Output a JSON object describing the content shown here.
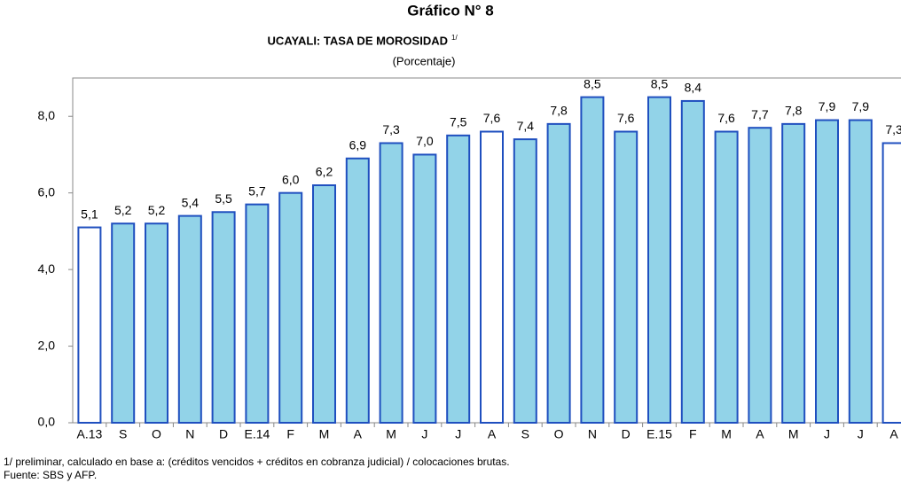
{
  "chart_data": {
    "type": "bar",
    "title": "Gráfico N° 8",
    "subtitle": "UCAYALI: TASA DE MOROSIDAD",
    "subtitle_note": "1/",
    "units": "(Porcentaje)",
    "categories": [
      "A.13",
      "S",
      "O",
      "N",
      "D",
      "E.14",
      "F",
      "M",
      "A",
      "M",
      "J",
      "J",
      "A",
      "S",
      "O",
      "N",
      "D",
      "E.15",
      "F",
      "M",
      "A",
      "M",
      "J",
      "J",
      "A"
    ],
    "values": [
      5.1,
      5.2,
      5.2,
      5.4,
      5.5,
      5.7,
      6.0,
      6.2,
      6.9,
      7.3,
      7.0,
      7.5,
      7.6,
      7.4,
      7.8,
      8.5,
      7.6,
      8.5,
      8.4,
      7.6,
      7.7,
      7.8,
      7.9,
      7.9,
      7.3
    ],
    "value_labels": [
      "5,1",
      "5,2",
      "5,2",
      "5,4",
      "5,5",
      "5,7",
      "6,0",
      "6,2",
      "6,9",
      "7,3",
      "7,0",
      "7,5",
      "7,6",
      "7,4",
      "7,8",
      "8,5",
      "7,6",
      "8,5",
      "8,4",
      "7,6",
      "7,7",
      "7,8",
      "7,9",
      "7,9",
      "7,3"
    ],
    "colors": [
      "#ffffff",
      "#92d3e8",
      "#92d3e8",
      "#92d3e8",
      "#92d3e8",
      "#92d3e8",
      "#92d3e8",
      "#92d3e8",
      "#92d3e8",
      "#92d3e8",
      "#92d3e8",
      "#92d3e8",
      "#ffffff",
      "#92d3e8",
      "#92d3e8",
      "#92d3e8",
      "#92d3e8",
      "#92d3e8",
      "#92d3e8",
      "#92d3e8",
      "#92d3e8",
      "#92d3e8",
      "#92d3e8",
      "#92d3e8",
      "#ffffff"
    ],
    "edge_color": "#1f4fbf",
    "ylim": [
      0,
      9
    ],
    "yticks": [
      {
        "value": 0,
        "label": "0,0"
      },
      {
        "value": 2,
        "label": "2,0"
      },
      {
        "value": 4,
        "label": "4,0"
      },
      {
        "value": 6,
        "label": "6,0"
      },
      {
        "value": 8,
        "label": "8,0"
      }
    ],
    "grid": false,
    "footnotes": [
      "1/ preliminar, calculado en base a: (créditos vencidos + créditos en cobranza judicial) / colocaciones brutas.",
      "Fuente: SBS  y AFP."
    ]
  }
}
